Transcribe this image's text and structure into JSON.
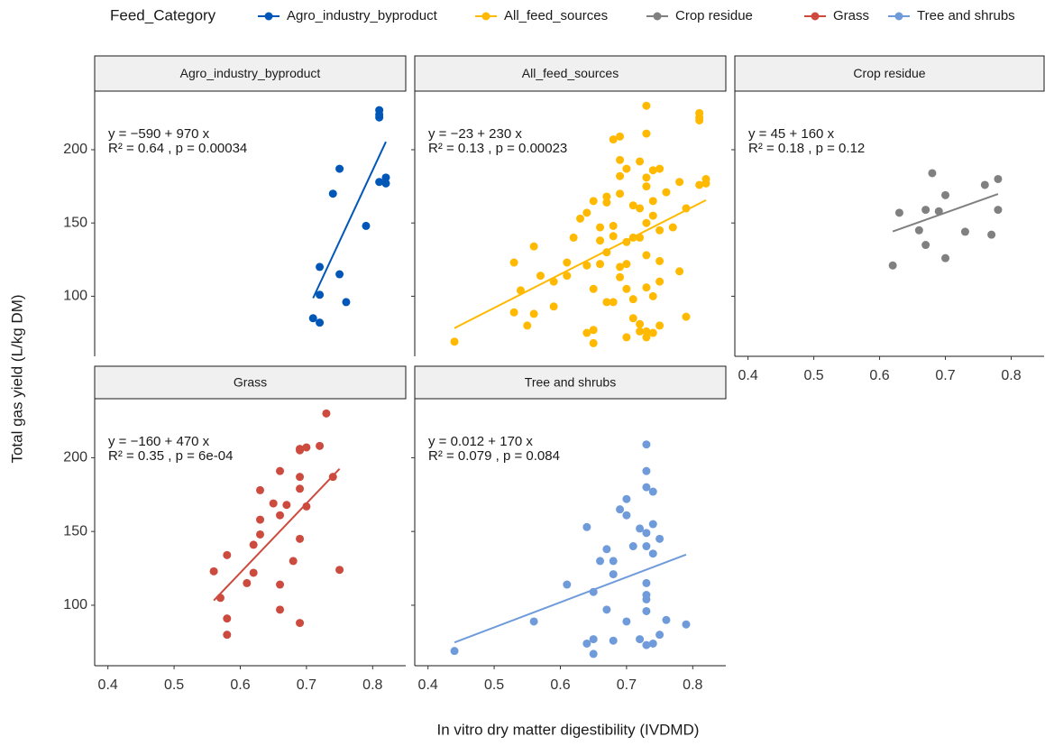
{
  "chart_data": {
    "type": "scatter",
    "legend_title": "Feed_Category",
    "xlabel": "In vitro dry matter digestibility (IVDMD)",
    "ylabel": "Total gas yield (L/kg DM)",
    "xlim": [
      0.38,
      0.85
    ],
    "ylim": [
      59,
      240
    ],
    "xticks": [
      0.4,
      0.5,
      0.6,
      0.7,
      0.8
    ],
    "yticks": [
      100,
      150,
      200
    ],
    "series": [
      {
        "name": "Agro_industry_byproduct",
        "color": "#0057b7",
        "equation": "y = −590 + 970 x",
        "stats": "R² = 0.64 , p = 0.00034",
        "fit": {
          "intercept": -590,
          "slope": 970
        },
        "x": [
          0.71,
          0.72,
          0.72,
          0.72,
          0.74,
          0.75,
          0.75,
          0.76,
          0.79,
          0.81,
          0.81,
          0.81,
          0.81,
          0.82,
          0.82
        ],
        "values": [
          85,
          82,
          120,
          101,
          170,
          187,
          115,
          96,
          148,
          227,
          224,
          222,
          178,
          181,
          177
        ]
      },
      {
        "name": "All_feed_sources",
        "color": "#ffb900",
        "equation": "y = −23 + 230 x",
        "stats": "R² = 0.13 , p = 0.00023",
        "fit": {
          "intercept": -23,
          "slope": 230
        },
        "x": [
          0.44,
          0.53,
          0.53,
          0.54,
          0.55,
          0.56,
          0.56,
          0.57,
          0.59,
          0.59,
          0.61,
          0.61,
          0.62,
          0.63,
          0.64,
          0.64,
          0.64,
          0.65,
          0.65,
          0.65,
          0.65,
          0.66,
          0.66,
          0.66,
          0.67,
          0.67,
          0.67,
          0.67,
          0.68,
          0.68,
          0.68,
          0.68,
          0.69,
          0.69,
          0.69,
          0.69,
          0.69,
          0.69,
          0.7,
          0.7,
          0.7,
          0.7,
          0.7,
          0.71,
          0.71,
          0.71,
          0.71,
          0.72,
          0.72,
          0.72,
          0.72,
          0.72,
          0.73,
          0.73,
          0.73,
          0.73,
          0.73,
          0.73,
          0.73,
          0.73,
          0.73,
          0.74,
          0.74,
          0.74,
          0.74,
          0.74,
          0.75,
          0.75,
          0.75,
          0.75,
          0.75,
          0.76,
          0.77,
          0.78,
          0.78,
          0.79,
          0.79,
          0.81,
          0.81,
          0.81,
          0.81,
          0.82,
          0.82
        ],
        "values": [
          69,
          123,
          89,
          104,
          80,
          88,
          134,
          114,
          93,
          110,
          114,
          123,
          140,
          153,
          157,
          121,
          75,
          68,
          105,
          77,
          165,
          122,
          147,
          138,
          164,
          130,
          96,
          168,
          207,
          141,
          96,
          148,
          209,
          193,
          170,
          182,
          113,
          120,
          187,
          137,
          72,
          105,
          122,
          162,
          140,
          85,
          98,
          160,
          192,
          76,
          140,
          81,
          211,
          230,
          181,
          175,
          150,
          128,
          106,
          76,
          72,
          186,
          165,
          155,
          100,
          75,
          187,
          145,
          124,
          110,
          80,
          171,
          147,
          117,
          178,
          160,
          86,
          225,
          222,
          220,
          176,
          180,
          177
        ]
      },
      {
        "name": "Crop residue",
        "color": "#808080",
        "equation": "y = 45 + 160 x",
        "stats": "R² = 0.18 , p = 0.12",
        "fit": {
          "intercept": 45,
          "slope": 160
        },
        "x": [
          0.62,
          0.63,
          0.66,
          0.67,
          0.67,
          0.68,
          0.69,
          0.7,
          0.7,
          0.73,
          0.76,
          0.77,
          0.78,
          0.78
        ],
        "values": [
          121,
          157,
          145,
          135,
          159,
          184,
          158,
          169,
          126,
          144,
          176,
          142,
          180,
          159
        ]
      },
      {
        "name": "Grass",
        "color": "#cd4a3f",
        "equation": "y = −160 + 470 x",
        "stats": "R² = 0.35 , p = 6e-04",
        "fit": {
          "intercept": -160,
          "slope": 470
        },
        "x": [
          0.56,
          0.57,
          0.58,
          0.58,
          0.58,
          0.61,
          0.62,
          0.62,
          0.63,
          0.63,
          0.63,
          0.65,
          0.66,
          0.66,
          0.66,
          0.66,
          0.67,
          0.68,
          0.69,
          0.69,
          0.69,
          0.69,
          0.69,
          0.69,
          0.7,
          0.7,
          0.72,
          0.73,
          0.74,
          0.75
        ],
        "values": [
          123,
          105,
          134,
          91,
          80,
          115,
          141,
          122,
          178,
          158,
          148,
          169,
          191,
          161,
          114,
          97,
          168,
          130,
          205,
          206,
          187,
          179,
          145,
          88,
          207,
          167,
          208,
          230,
          187,
          124
        ]
      },
      {
        "name": "Tree and shrubs",
        "color": "#6f9bdb",
        "equation": "y = 0.012 + 170 x",
        "stats": "R² = 0.079 , p = 0.084",
        "fit": {
          "intercept": 0.012,
          "slope": 170
        },
        "x": [
          0.44,
          0.56,
          0.61,
          0.64,
          0.64,
          0.65,
          0.65,
          0.65,
          0.66,
          0.67,
          0.67,
          0.68,
          0.68,
          0.68,
          0.69,
          0.7,
          0.7,
          0.7,
          0.71,
          0.72,
          0.73,
          0.73,
          0.73,
          0.73,
          0.73,
          0.73,
          0.73,
          0.73,
          0.73,
          0.73,
          0.74,
          0.74,
          0.74,
          0.74,
          0.75,
          0.75,
          0.76,
          0.79,
          0.72
        ],
        "values": [
          69,
          89,
          114,
          153,
          74,
          77,
          67,
          109,
          130,
          138,
          97,
          121,
          130,
          76,
          165,
          172,
          161,
          89,
          140,
          152,
          209,
          191,
          180,
          149,
          140,
          115,
          107,
          104,
          96,
          73,
          177,
          155,
          135,
          74,
          145,
          80,
          90,
          87,
          77
        ]
      }
    ]
  }
}
